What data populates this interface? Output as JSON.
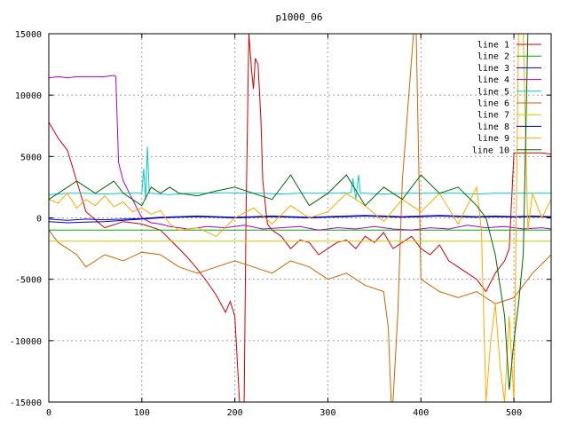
{
  "chart_data": {
    "type": "line",
    "title": "p1000_06",
    "xlabel": "",
    "ylabel": "",
    "xlim": [
      0,
      540
    ],
    "ylim": [
      -15000,
      15000
    ],
    "x_ticks": [
      0,
      100,
      200,
      300,
      400,
      500
    ],
    "y_ticks": [
      -15000,
      -10000,
      -5000,
      0,
      5000,
      10000,
      15000
    ],
    "grid": true,
    "legend_position": "top-right",
    "series": [
      {
        "name": "line 1",
        "color": "#cc0000",
        "x": [
          0,
          10,
          20,
          30,
          40,
          60,
          80,
          100,
          120,
          140,
          150,
          160,
          170,
          180,
          190,
          195,
          200,
          205,
          210,
          212,
          215,
          218,
          220,
          222,
          225,
          228,
          230,
          235,
          240,
          250,
          260,
          270,
          280,
          290,
          300,
          310,
          320,
          330,
          340,
          350,
          360,
          370,
          380,
          390,
          400,
          410,
          420,
          430,
          440,
          450,
          460,
          470,
          480,
          490,
          495,
          500,
          505,
          510,
          520,
          530,
          540
        ],
        "y": [
          7800,
          6500,
          5500,
          3000,
          500,
          -800,
          -300,
          -500,
          -1000,
          -2500,
          -3300,
          -4200,
          -5200,
          -6300,
          -7700,
          -6800,
          -8000,
          -15000,
          -15000,
          0,
          15000,
          12000,
          10500,
          13000,
          12500,
          8000,
          3000,
          -500,
          -1000,
          -1500,
          -2500,
          -1800,
          -2000,
          -3000,
          -2500,
          -2000,
          -1800,
          -2500,
          -1500,
          -2000,
          -1200,
          -2500,
          -2000,
          -1500,
          -2500,
          -3000,
          -2200,
          -3500,
          -4000,
          -4500,
          -5000,
          -6000,
          -4500,
          -3500,
          -2500,
          5300,
          5300,
          5300,
          5300,
          5300,
          5200
        ]
      },
      {
        "name": "line 2",
        "color": "#00aa00",
        "x": [
          0,
          100,
          200,
          300,
          400,
          500,
          530,
          540
        ],
        "y": [
          -1000,
          -1000,
          -1000,
          -1000,
          -1000,
          -1000,
          -1000,
          -1000
        ]
      },
      {
        "name": "line 3",
        "color": "#0000cc",
        "x": [
          0,
          20,
          40,
          60,
          80,
          100,
          120,
          140,
          160,
          180,
          200,
          220,
          240,
          260,
          280,
          300,
          320,
          340,
          360,
          380,
          400,
          420,
          440,
          460,
          480,
          500,
          520,
          540
        ],
        "y": [
          -100,
          -200,
          -100,
          -150,
          -100,
          -50,
          50,
          100,
          150,
          100,
          50,
          100,
          150,
          100,
          50,
          100,
          150,
          200,
          150,
          100,
          150,
          200,
          150,
          100,
          150,
          100,
          150,
          100
        ]
      },
      {
        "name": "line 4",
        "color": "#aa00cc",
        "x": [
          0,
          10,
          20,
          30,
          40,
          50,
          60,
          70,
          72,
          75,
          80,
          90,
          100,
          110,
          120,
          130,
          150,
          170,
          190,
          210,
          230,
          250,
          270,
          290,
          310,
          330,
          350,
          370,
          390,
          410,
          430,
          450,
          470,
          490,
          510,
          530,
          540
        ],
        "y": [
          11400,
          11500,
          11400,
          11500,
          11500,
          11500,
          11500,
          11600,
          11500,
          4500,
          3000,
          1500,
          0,
          -400,
          -500,
          -700,
          -900,
          -700,
          -800,
          -600,
          -900,
          -800,
          -700,
          -1000,
          -800,
          -900,
          -700,
          -900,
          -1000,
          -800,
          -900,
          -600,
          -800,
          -700,
          -900,
          -800,
          -900
        ]
      },
      {
        "name": "line 5",
        "color": "#00cccc",
        "x": [
          0,
          20,
          40,
          60,
          80,
          100,
          102,
          104,
          106,
          108,
          110,
          130,
          150,
          170,
          190,
          210,
          230,
          250,
          270,
          290,
          310,
          325,
          327,
          330,
          333,
          335,
          340,
          360,
          380,
          400,
          420,
          440,
          460,
          480,
          500,
          520,
          540
        ],
        "y": [
          1900,
          2000,
          2000,
          1950,
          2000,
          2000,
          4000,
          1500,
          5800,
          2000,
          2000,
          1900,
          2000,
          2000,
          2050,
          2000,
          2000,
          1950,
          2000,
          2000,
          2000,
          2050,
          3200,
          1500,
          3500,
          2000,
          2000,
          1950,
          2000,
          2000,
          2000,
          2000,
          1950,
          2000,
          2000,
          2000,
          2000
        ]
      },
      {
        "name": "line 6",
        "color": "#cc6600",
        "x": [
          0,
          10,
          20,
          30,
          40,
          60,
          80,
          100,
          120,
          140,
          160,
          180,
          200,
          220,
          240,
          260,
          280,
          300,
          320,
          340,
          360,
          365,
          368,
          370,
          375,
          380,
          385,
          388,
          390,
          392,
          395,
          400,
          420,
          440,
          460,
          480,
          500,
          520,
          540
        ],
        "y": [
          -1000,
          -2000,
          -2500,
          -3000,
          -4000,
          -3000,
          -3500,
          -2800,
          -3000,
          -4000,
          -4500,
          -4000,
          -3500,
          -4000,
          -4500,
          -3500,
          -4000,
          -5000,
          -4500,
          -5500,
          -6000,
          -9000,
          -15000,
          -15000,
          -8000,
          3000,
          8000,
          11000,
          13000,
          15000,
          15000,
          -5000,
          -6000,
          -6500,
          -6000,
          -7000,
          -6500,
          -4500,
          -3000
        ]
      },
      {
        "name": "line 7",
        "color": "#cccc00",
        "x": [
          0,
          100,
          200,
          300,
          400,
          500,
          540
        ],
        "y": [
          -1900,
          -1900,
          -1900,
          -1900,
          -1900,
          -1900,
          -1900
        ]
      },
      {
        "name": "line 8",
        "color": "#0000aa",
        "x": [
          0,
          20,
          40,
          60,
          80,
          100,
          120,
          140,
          160,
          180,
          200,
          220,
          240,
          260,
          280,
          300,
          320,
          340,
          360,
          380,
          400,
          420,
          440,
          460,
          480,
          500,
          520,
          540
        ],
        "y": [
          -300,
          -400,
          -350,
          -300,
          -200,
          -100,
          0,
          50,
          100,
          50,
          0,
          50,
          100,
          50,
          0,
          50,
          100,
          150,
          100,
          50,
          100,
          150,
          100,
          50,
          100,
          50,
          100,
          50
        ]
      },
      {
        "name": "line 9",
        "color": "#ffaa00",
        "x": [
          0,
          10,
          20,
          30,
          40,
          50,
          60,
          70,
          80,
          90,
          100,
          110,
          120,
          130,
          140,
          160,
          180,
          200,
          220,
          240,
          260,
          280,
          300,
          320,
          340,
          360,
          380,
          400,
          420,
          440,
          460,
          465,
          470,
          475,
          480,
          485,
          490,
          495,
          500,
          505,
          510,
          515,
          520,
          530,
          540
        ],
        "y": [
          1500,
          1200,
          2000,
          800,
          1500,
          1000,
          1800,
          900,
          1300,
          500,
          800,
          300,
          600,
          -500,
          -1000,
          -800,
          -1500,
          0,
          800,
          -500,
          1000,
          0,
          500,
          2000,
          1000,
          -300,
          1500,
          500,
          2000,
          -500,
          2500,
          -1000,
          -15000,
          -10000,
          -7000,
          -12000,
          -15000,
          -8000,
          -15000,
          15000,
          15000,
          -1000,
          2000,
          0,
          1500
        ]
      },
      {
        "name": "line 10",
        "color": "#006600",
        "x": [
          0,
          10,
          20,
          30,
          40,
          50,
          60,
          70,
          80,
          90,
          100,
          110,
          120,
          130,
          140,
          160,
          180,
          200,
          220,
          240,
          260,
          280,
          300,
          320,
          340,
          360,
          380,
          400,
          420,
          440,
          460,
          470,
          480,
          490,
          495,
          500,
          505,
          510,
          515,
          520,
          525,
          530,
          540
        ],
        "y": [
          1500,
          2000,
          2500,
          3000,
          2500,
          2000,
          2500,
          3000,
          2000,
          1500,
          1000,
          2500,
          2000,
          2500,
          2000,
          1800,
          2200,
          2500,
          2000,
          1500,
          3500,
          1000,
          2000,
          3500,
          1000,
          2500,
          1500,
          3500,
          2000,
          2500,
          1000,
          0,
          -3000,
          -8000,
          -14000,
          -10000,
          -7000,
          -3000,
          15000,
          15000,
          15000,
          15000,
          15000
        ]
      }
    ]
  }
}
